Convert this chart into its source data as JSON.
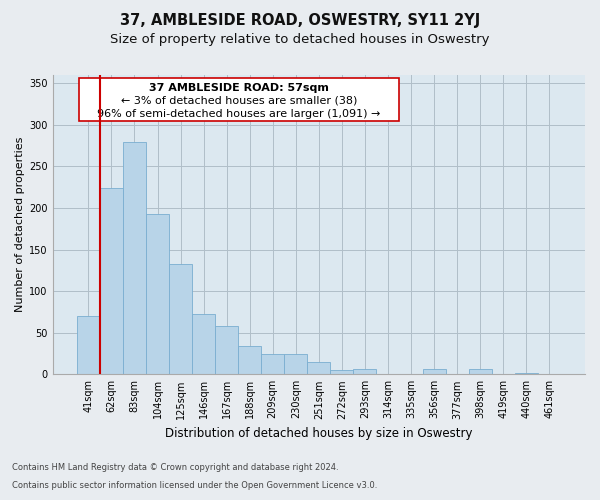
{
  "title": "37, AMBLESIDE ROAD, OSWESTRY, SY11 2YJ",
  "subtitle": "Size of property relative to detached houses in Oswestry",
  "xlabel": "Distribution of detached houses by size in Oswestry",
  "ylabel": "Number of detached properties",
  "bar_labels": [
    "41sqm",
    "62sqm",
    "83sqm",
    "104sqm",
    "125sqm",
    "146sqm",
    "167sqm",
    "188sqm",
    "209sqm",
    "230sqm",
    "251sqm",
    "272sqm",
    "293sqm",
    "314sqm",
    "335sqm",
    "356sqm",
    "377sqm",
    "398sqm",
    "419sqm",
    "440sqm",
    "461sqm"
  ],
  "bar_values": [
    70,
    224,
    280,
    193,
    133,
    73,
    58,
    34,
    24,
    25,
    15,
    5,
    6,
    0,
    0,
    6,
    0,
    6,
    0,
    1,
    0
  ],
  "bar_color": "#b8d4e8",
  "bar_edge_color": "#7aaed0",
  "highlight_color": "#cc0000",
  "annotation_line1": "37 AMBLESIDE ROAD: 57sqm",
  "annotation_line2": "← 3% of detached houses are smaller (38)",
  "annotation_line3": "96% of semi-detached houses are larger (1,091) →",
  "ylim": [
    0,
    360
  ],
  "yticks": [
    0,
    50,
    100,
    150,
    200,
    250,
    300,
    350
  ],
  "footnote_line1": "Contains HM Land Registry data © Crown copyright and database right 2024.",
  "footnote_line2": "Contains public sector information licensed under the Open Government Licence v3.0.",
  "background_color": "#e8ecf0",
  "plot_bg_color": "#dce8f0",
  "grid_color": "#b0bec8",
  "title_fontsize": 10.5,
  "subtitle_fontsize": 9.5,
  "xlabel_fontsize": 8.5,
  "ylabel_fontsize": 8,
  "tick_fontsize": 7,
  "annotation_fontsize": 8,
  "footnote_fontsize": 6
}
